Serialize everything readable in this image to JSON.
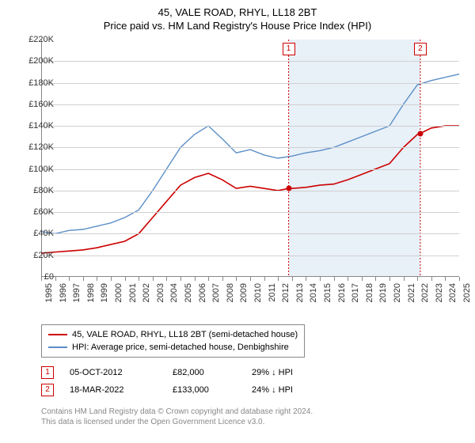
{
  "title": "45, VALE ROAD, RHYL, LL18 2BT",
  "subtitle": "Price paid vs. HM Land Registry's House Price Index (HPI)",
  "chart": {
    "type": "line",
    "background_color": "#ffffff",
    "shaded_color": "#e8f0f8",
    "grid_color": "#d0d0d0",
    "axis_color": "#888888",
    "label_fontsize": 11,
    "title_fontsize": 13,
    "x_years": [
      1995,
      1996,
      1997,
      1998,
      1999,
      2000,
      2001,
      2002,
      2003,
      2004,
      2005,
      2006,
      2007,
      2008,
      2009,
      2010,
      2011,
      2012,
      2013,
      2014,
      2015,
      2016,
      2017,
      2018,
      2019,
      2020,
      2021,
      2022,
      2023,
      2024,
      2025
    ],
    "y_ticks": [
      0,
      20,
      40,
      60,
      80,
      100,
      120,
      140,
      160,
      180,
      200,
      220
    ],
    "y_tick_labels": [
      "£0",
      "£20K",
      "£40K",
      "£60K",
      "£80K",
      "£100K",
      "£120K",
      "£140K",
      "£160K",
      "£180K",
      "£200K",
      "£220K"
    ],
    "y_max": 220,
    "x_min": 1995,
    "x_max": 2025,
    "shaded_start": 2012.76,
    "shaded_end": 2022.21,
    "series": [
      {
        "name": "property",
        "color": "#cc0000",
        "width": 1.6,
        "data": [
          [
            1995,
            22
          ],
          [
            1996,
            23
          ],
          [
            1997,
            24
          ],
          [
            1998,
            25
          ],
          [
            1999,
            27
          ],
          [
            2000,
            30
          ],
          [
            2001,
            33
          ],
          [
            2002,
            40
          ],
          [
            2003,
            55
          ],
          [
            2004,
            70
          ],
          [
            2005,
            85
          ],
          [
            2006,
            92
          ],
          [
            2007,
            96
          ],
          [
            2008,
            90
          ],
          [
            2009,
            82
          ],
          [
            2010,
            84
          ],
          [
            2011,
            82
          ],
          [
            2012,
            80
          ],
          [
            2012.76,
            82
          ],
          [
            2013,
            82
          ],
          [
            2014,
            83
          ],
          [
            2015,
            85
          ],
          [
            2016,
            86
          ],
          [
            2017,
            90
          ],
          [
            2018,
            95
          ],
          [
            2019,
            100
          ],
          [
            2020,
            105
          ],
          [
            2021,
            120
          ],
          [
            2022,
            132
          ],
          [
            2022.21,
            133
          ],
          [
            2023,
            138
          ],
          [
            2024,
            140
          ],
          [
            2025,
            140
          ]
        ]
      },
      {
        "name": "hpi",
        "color": "#5b8fc7",
        "width": 1.4,
        "data": [
          [
            1995,
            42
          ],
          [
            1996,
            40
          ],
          [
            1997,
            43
          ],
          [
            1998,
            44
          ],
          [
            1999,
            47
          ],
          [
            2000,
            50
          ],
          [
            2001,
            55
          ],
          [
            2002,
            62
          ],
          [
            2003,
            80
          ],
          [
            2004,
            100
          ],
          [
            2005,
            120
          ],
          [
            2006,
            132
          ],
          [
            2007,
            140
          ],
          [
            2008,
            128
          ],
          [
            2009,
            115
          ],
          [
            2010,
            118
          ],
          [
            2011,
            113
          ],
          [
            2012,
            110
          ],
          [
            2013,
            112
          ],
          [
            2014,
            115
          ],
          [
            2015,
            117
          ],
          [
            2016,
            120
          ],
          [
            2017,
            125
          ],
          [
            2018,
            130
          ],
          [
            2019,
            135
          ],
          [
            2020,
            140
          ],
          [
            2021,
            160
          ],
          [
            2022,
            178
          ],
          [
            2023,
            182
          ],
          [
            2024,
            185
          ],
          [
            2025,
            188
          ]
        ]
      }
    ],
    "markers": [
      {
        "n": "1",
        "year": 2012.76,
        "price": 82
      },
      {
        "n": "2",
        "year": 2022.21,
        "price": 133
      }
    ]
  },
  "legend": {
    "items": [
      {
        "color": "#cc0000",
        "label": "45, VALE ROAD, RHYL, LL18 2BT (semi-detached house)"
      },
      {
        "color": "#5b8fc7",
        "label": "HPI: Average price, semi-detached house, Denbighshire"
      }
    ]
  },
  "sales": [
    {
      "n": "1",
      "date": "05-OCT-2012",
      "price": "£82,000",
      "diff": "29% ↓ HPI"
    },
    {
      "n": "2",
      "date": "18-MAR-2022",
      "price": "£133,000",
      "diff": "24% ↓ HPI"
    }
  ],
  "footer": {
    "line1": "Contains HM Land Registry data © Crown copyright and database right 2024.",
    "line2": "This data is licensed under the Open Government Licence v3.0."
  }
}
